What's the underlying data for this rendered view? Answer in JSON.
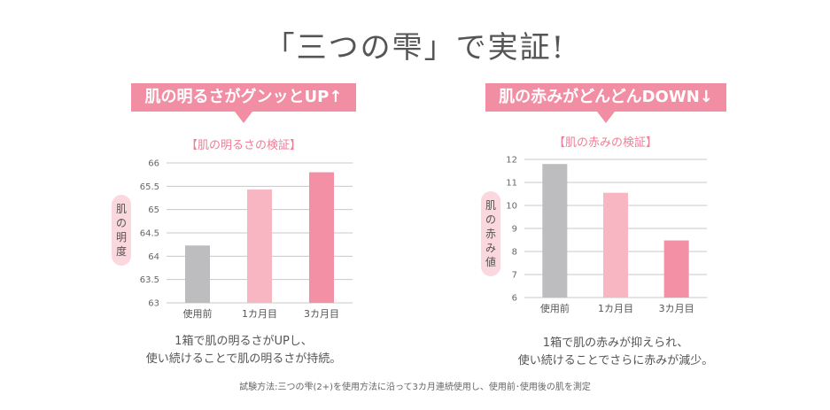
{
  "page": {
    "title": "「三つの雫」で実証!",
    "footnote": "試験方法:三つの雫(2+)を使用方法に沿って3カ月連続使用し、使用前･使用後の肌を測定"
  },
  "left_panel": {
    "banner": "肌の明るさがグンッとUP↑",
    "caption_line1": "1箱で肌の明るさがUPし、",
    "caption_line2": "使い続けることで肌の明るさが持続。"
  },
  "right_panel": {
    "banner": "肌の赤みがどんどんDOWN↓",
    "caption_line1": "1箱で肌の赤みが抑えられ、",
    "caption_line2": "使い続けることでさらに赤みが減少。"
  },
  "colors": {
    "accent_pink": "#f28ea3",
    "bar_before": "#bdbdbf",
    "bar_1month": "#f8b6c3",
    "bar_3month": "#f390a6"
  },
  "chart_data": [
    {
      "type": "bar",
      "title": "【肌の明るさの検証】",
      "ylabel": "肌の明度",
      "categories": [
        "使用前",
        "1カ月目",
        "3カ月目"
      ],
      "values": [
        64.23,
        65.43,
        65.8
      ],
      "ylim": [
        63,
        66
      ],
      "yticks": [
        "63",
        "63.5",
        "64",
        "64.5",
        "65",
        "65.5",
        "66"
      ],
      "grid": true
    },
    {
      "type": "bar",
      "title": "【肌の赤みの検証】",
      "ylabel": "肌の赤み値",
      "categories": [
        "使用前",
        "1カ月目",
        "3カ月目"
      ],
      "values": [
        11.8,
        10.55,
        8.48
      ],
      "ylim": [
        6,
        12
      ],
      "yticks": [
        "6",
        "7",
        "8",
        "9",
        "10",
        "11",
        "12"
      ],
      "grid": true
    }
  ]
}
